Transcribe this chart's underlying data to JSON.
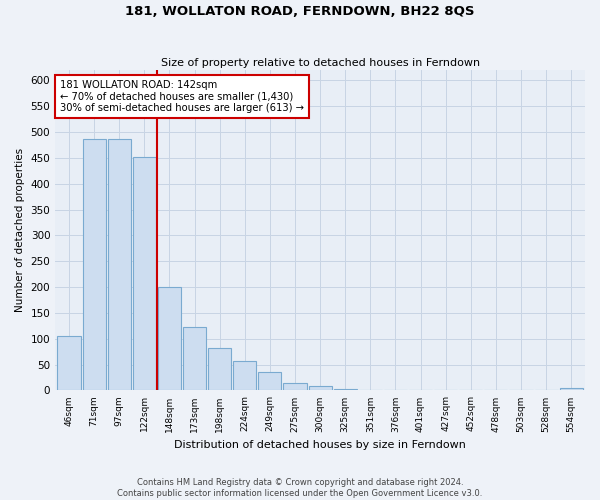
{
  "title": "181, WOLLATON ROAD, FERNDOWN, BH22 8QS",
  "subtitle": "Size of property relative to detached houses in Ferndown",
  "xlabel": "Distribution of detached houses by size in Ferndown",
  "ylabel": "Number of detached properties",
  "bar_labels": [
    "46sqm",
    "71sqm",
    "97sqm",
    "122sqm",
    "148sqm",
    "173sqm",
    "198sqm",
    "224sqm",
    "249sqm",
    "275sqm",
    "300sqm",
    "325sqm",
    "351sqm",
    "376sqm",
    "401sqm",
    "427sqm",
    "452sqm",
    "478sqm",
    "503sqm",
    "528sqm",
    "554sqm"
  ],
  "bar_heights": [
    105,
    487,
    487,
    452,
    200,
    122,
    82,
    57,
    35,
    15,
    8,
    2,
    1,
    0,
    1,
    0,
    0,
    0,
    0,
    0,
    4
  ],
  "bar_color": "#cdddf0",
  "bar_edge_color": "#7aaad0",
  "vline_x_idx": 4,
  "annotation_title": "181 WOLLATON ROAD: 142sqm",
  "annotation_line1": "← 70% of detached houses are smaller (1,430)",
  "annotation_line2": "30% of semi-detached houses are larger (613) →",
  "annotation_box_color": "#ffffff",
  "annotation_box_edge": "#cc0000",
  "vline_color": "#cc0000",
  "ylim": [
    0,
    620
  ],
  "yticks": [
    0,
    50,
    100,
    150,
    200,
    250,
    300,
    350,
    400,
    450,
    500,
    550,
    600
  ],
  "footer_line1": "Contains HM Land Registry data © Crown copyright and database right 2024.",
  "footer_line2": "Contains public sector information licensed under the Open Government Licence v3.0.",
  "bg_color": "#eef2f8",
  "plot_bg_color": "#e8eef6",
  "grid_color": "#c8d4e4"
}
